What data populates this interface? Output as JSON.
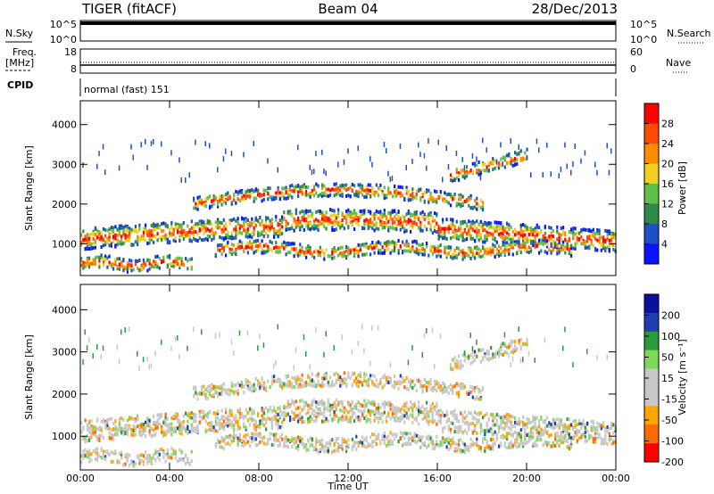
{
  "header": {
    "left": "TIGER (fitACF)",
    "center": "Beam 04",
    "right": "28/Dec/2013"
  },
  "strip_sky": {
    "left_label": "N.Sky",
    "right_label": "N.Search",
    "left_ticks": [
      "10^5",
      "10^0"
    ],
    "right_ticks": [
      "10^5",
      "10^0"
    ]
  },
  "strip_freq": {
    "left_label_1": "Freq.",
    "left_label_2": "[MHz]",
    "right_label": "Nave",
    "left_ticks": [
      "18",
      "8"
    ],
    "right_ticks": [
      "60",
      "0"
    ]
  },
  "strip_cpid": {
    "label": "CPID",
    "text": "normal (fast) 151"
  },
  "colors": {
    "power_scale": [
      "#0a14ff",
      "#1f4fc4",
      "#2f8a4a",
      "#5fc04a",
      "#f0d020",
      "#ff8c00",
      "#ff4a00",
      "#ff0000"
    ],
    "velocity_scale": [
      "#ff0000",
      "#ff6a00",
      "#ffa500",
      "#c8c8c8",
      "#c8c8c8",
      "#7ed957",
      "#2a9a3a",
      "#1f3fb0",
      "#0a10a0"
    ]
  },
  "chart_data": [
    {
      "type": "heatmap",
      "name": "power",
      "ylabel": "Slant Range [km]",
      "xlabel": "",
      "x_range_hours": [
        0,
        24
      ],
      "ylim": [
        200,
        4600
      ],
      "yticks": [
        "1000",
        "2000",
        "3000",
        "4000"
      ],
      "xticks": [
        "00:00",
        "04:00",
        "08:00",
        "12:00",
        "16:00",
        "20:00",
        "00:00"
      ],
      "colorbar_label": "Power [dB]",
      "colorbar_ticks": [
        "28",
        "24",
        "20",
        "16",
        "12",
        "8",
        "4"
      ],
      "colorbar_range": [
        0,
        32
      ]
    },
    {
      "type": "heatmap",
      "name": "velocity",
      "ylabel": "Slant Range [km]",
      "xlabel": "Time UT",
      "x_range_hours": [
        0,
        24
      ],
      "ylim": [
        200,
        4600
      ],
      "yticks": [
        "1000",
        "2000",
        "3000",
        "4000"
      ],
      "xticks": [
        "00:00",
        "04:00",
        "08:00",
        "12:00",
        "16:00",
        "20:00",
        "00:00"
      ],
      "colorbar_label": "Velocity [m s⁻¹]",
      "colorbar_ticks": [
        "200",
        "100",
        "50",
        "15",
        "-15",
        "-50",
        "-100",
        "-200"
      ],
      "colorbar_range": [
        -250,
        250
      ]
    }
  ]
}
